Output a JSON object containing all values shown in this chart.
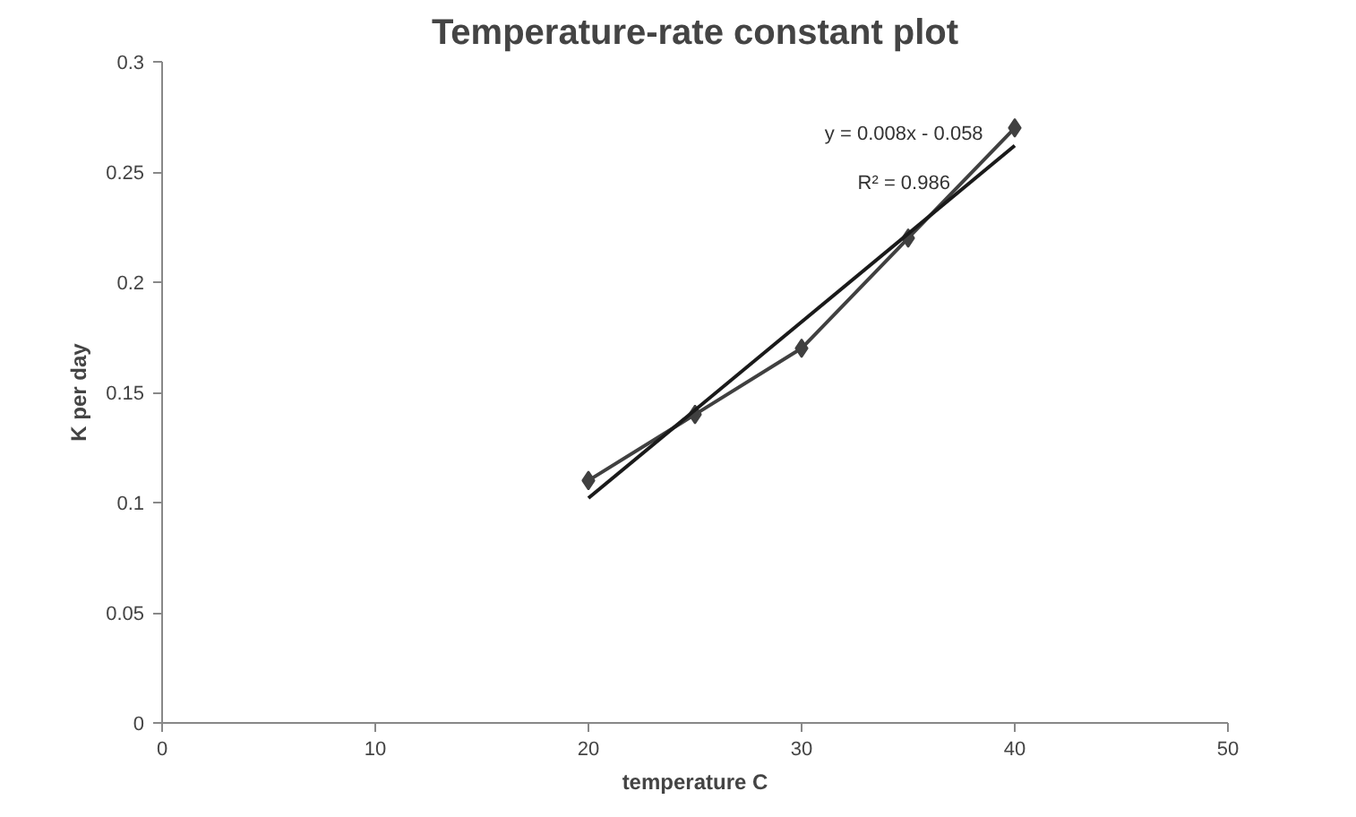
{
  "chart_data": {
    "type": "line",
    "title": "Temperature-rate constant plot",
    "xlabel": "temperature C",
    "ylabel": "K per day",
    "x": [
      20,
      25,
      30,
      35,
      40
    ],
    "series": [
      {
        "color": "#404040",
        "values": [
          0.11,
          0.14,
          0.17,
          0.22,
          0.27
        ],
        "marker": "diamond"
      },
      {
        "type": "line",
        "color": "#1a1a1a",
        "x": [
          20,
          40
        ],
        "values": [
          0.102,
          0.262
        ],
        "marker": "none"
      }
    ],
    "annotations": [
      "y = 0.008x - 0.058",
      "R² = 0.986"
    ],
    "xlim": [
      0,
      50
    ],
    "xticks": [
      0,
      10,
      20,
      30,
      40,
      50
    ],
    "ylim": [
      0,
      0.3
    ],
    "yticks": [
      0,
      0.05,
      0.1,
      0.15,
      0.2,
      0.25,
      0.3
    ],
    "grid": false,
    "line_style": "solid"
  }
}
